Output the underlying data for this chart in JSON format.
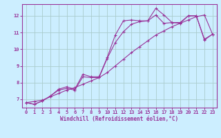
{
  "xlabel": "Windchill (Refroidissement éolien,°C)",
  "bg_color": "#cceeff",
  "grid_color": "#aacccc",
  "line_color": "#993399",
  "xlim": [
    -0.5,
    23.5
  ],
  "ylim": [
    6.5,
    12.7
  ],
  "xticks": [
    0,
    1,
    2,
    3,
    4,
    5,
    6,
    7,
    8,
    9,
    10,
    11,
    12,
    13,
    14,
    15,
    16,
    17,
    18,
    19,
    20,
    21,
    22,
    23
  ],
  "yticks": [
    7,
    8,
    9,
    10,
    11,
    12
  ],
  "series_zigzag_x": [
    0,
    1,
    2,
    3,
    4,
    5,
    6,
    7,
    8,
    9,
    10,
    11,
    12,
    13,
    14,
    15,
    16,
    17,
    18,
    19,
    20,
    21,
    22,
    23
  ],
  "series_zigzag_y": [
    6.8,
    6.7,
    6.9,
    7.2,
    7.6,
    7.75,
    7.6,
    8.5,
    8.35,
    8.35,
    9.5,
    10.85,
    11.7,
    11.75,
    11.7,
    11.7,
    12.45,
    12.05,
    11.6,
    11.6,
    12.0,
    12.0,
    10.6,
    10.9
  ],
  "series_mid_x": [
    0,
    1,
    2,
    3,
    4,
    5,
    6,
    7,
    8,
    9,
    10,
    11,
    12,
    13,
    14,
    15,
    16,
    17,
    18,
    19,
    20,
    21,
    22,
    23
  ],
  "series_mid_y": [
    6.8,
    6.7,
    6.9,
    7.2,
    7.55,
    7.65,
    7.55,
    8.35,
    8.3,
    8.3,
    9.45,
    10.4,
    11.05,
    11.5,
    11.65,
    11.7,
    12.05,
    11.55,
    11.6,
    11.55,
    12.0,
    12.0,
    10.55,
    10.9
  ],
  "series_linear_x": [
    0,
    1,
    2,
    3,
    4,
    5,
    6,
    7,
    8,
    9,
    10,
    11,
    12,
    13,
    14,
    15,
    16,
    17,
    18,
    19,
    20,
    21,
    22,
    23
  ],
  "series_linear_y": [
    6.8,
    6.87,
    6.95,
    7.15,
    7.35,
    7.55,
    7.7,
    7.9,
    8.1,
    8.3,
    8.6,
    9.0,
    9.4,
    9.8,
    10.15,
    10.5,
    10.85,
    11.1,
    11.35,
    11.55,
    11.75,
    11.95,
    12.05,
    10.9
  ]
}
